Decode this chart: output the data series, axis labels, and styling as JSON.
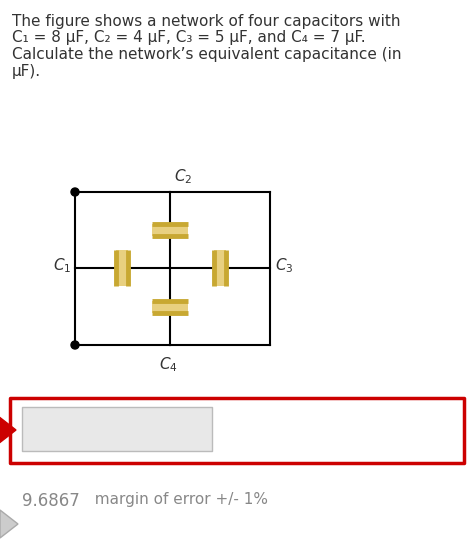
{
  "title_line1": "The figure shows a network of four capacitors with",
  "title_line2": "C₁ = 8 μF, C₂ = 4 μF, C₃ = 5 μF, and C₄ = 7 μF.",
  "title_line3": "Calculate the network’s equivalent capacitance (in",
  "title_line4": "μF).",
  "answer_value": "9.6867",
  "answer_note": "  margin of error +/- 1%",
  "bg_color": "#ffffff",
  "cap_fill_color": "#e8d080",
  "cap_plate_color": "#c8a832",
  "wire_color": "#000000",
  "input_box_color": "#e8e8e8",
  "answer_box_border": "#cc0000",
  "dot_color": "#000000",
  "text_color": "#333333",
  "answer_text_color": "#888888",
  "label_fontsize": 11,
  "body_fontsize": 11,
  "answer_fontsize": 11
}
